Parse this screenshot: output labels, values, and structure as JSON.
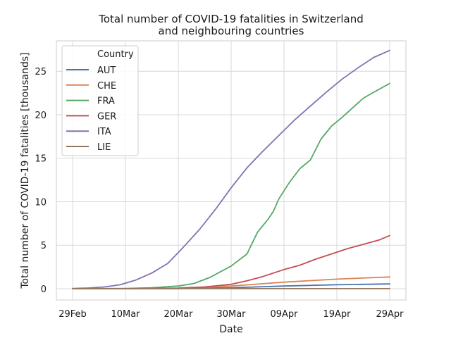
{
  "chart_data": {
    "type": "line",
    "title": [
      "Total number of COVID-19 fatalities in Switzerland",
      "and neighbouring countries"
    ],
    "xlabel": "Date",
    "ylabel": "Total number of COVID-19 fatalities [thousands]",
    "x_range": [
      "2020-02-29",
      "2020-04-29"
    ],
    "ylim": [
      -1.3,
      28.5
    ],
    "x_ticks": [
      {
        "date": "2020-02-29",
        "label": "29Feb"
      },
      {
        "date": "2020-03-10",
        "label": "10Mar"
      },
      {
        "date": "2020-03-20",
        "label": "20Mar"
      },
      {
        "date": "2020-03-30",
        "label": "30Mar"
      },
      {
        "date": "2020-04-09",
        "label": "09Apr"
      },
      {
        "date": "2020-04-19",
        "label": "19Apr"
      },
      {
        "date": "2020-04-29",
        "label": "29Apr"
      }
    ],
    "y_ticks": [
      0,
      5,
      10,
      15,
      20,
      25
    ],
    "grid": true,
    "legend": {
      "title": "Country",
      "placement": "top-left"
    },
    "series": [
      {
        "name": "AUT",
        "color": "#4c72b0",
        "points": [
          [
            "2020-02-29",
            0
          ],
          [
            "2020-03-10",
            0
          ],
          [
            "2020-03-20",
            0.01
          ],
          [
            "2020-03-30",
            0.1
          ],
          [
            "2020-04-09",
            0.3
          ],
          [
            "2020-04-19",
            0.45
          ],
          [
            "2020-04-29",
            0.55
          ]
        ]
      },
      {
        "name": "CHE",
        "color": "#dd8452",
        "points": [
          [
            "2020-02-29",
            0
          ],
          [
            "2020-03-10",
            0
          ],
          [
            "2020-03-20",
            0.05
          ],
          [
            "2020-03-30",
            0.3
          ],
          [
            "2020-04-09",
            0.75
          ],
          [
            "2020-04-19",
            1.1
          ],
          [
            "2020-04-29",
            1.35
          ]
        ]
      },
      {
        "name": "FRA",
        "color": "#55a868",
        "points": [
          [
            "2020-02-29",
            0
          ],
          [
            "2020-03-05",
            0.01
          ],
          [
            "2020-03-10",
            0.03
          ],
          [
            "2020-03-15",
            0.1
          ],
          [
            "2020-03-20",
            0.3
          ],
          [
            "2020-03-23",
            0.6
          ],
          [
            "2020-03-26",
            1.3
          ],
          [
            "2020-03-30",
            2.6
          ],
          [
            "2020-04-02",
            4.0
          ],
          [
            "2020-04-04",
            6.5
          ],
          [
            "2020-04-06",
            8.0
          ],
          [
            "2020-04-07",
            8.9
          ],
          [
            "2020-04-08",
            10.3
          ],
          [
            "2020-04-10",
            12.2
          ],
          [
            "2020-04-12",
            13.8
          ],
          [
            "2020-04-14",
            14.8
          ],
          [
            "2020-04-16",
            17.2
          ],
          [
            "2020-04-18",
            18.7
          ],
          [
            "2020-04-20",
            19.7
          ],
          [
            "2020-04-22",
            20.8
          ],
          [
            "2020-04-24",
            21.9
          ],
          [
            "2020-04-26",
            22.6
          ],
          [
            "2020-04-29",
            23.6
          ]
        ]
      },
      {
        "name": "GER",
        "color": "#c44e52",
        "points": [
          [
            "2020-02-29",
            0
          ],
          [
            "2020-03-10",
            0
          ],
          [
            "2020-03-20",
            0.07
          ],
          [
            "2020-03-25",
            0.2
          ],
          [
            "2020-03-30",
            0.5
          ],
          [
            "2020-04-02",
            0.9
          ],
          [
            "2020-04-05",
            1.4
          ],
          [
            "2020-04-09",
            2.2
          ],
          [
            "2020-04-12",
            2.7
          ],
          [
            "2020-04-15",
            3.4
          ],
          [
            "2020-04-18",
            4.0
          ],
          [
            "2020-04-21",
            4.6
          ],
          [
            "2020-04-24",
            5.1
          ],
          [
            "2020-04-27",
            5.6
          ],
          [
            "2020-04-29",
            6.1
          ]
        ]
      },
      {
        "name": "ITA",
        "color": "#8172b3",
        "points": [
          [
            "2020-02-29",
            0.02
          ],
          [
            "2020-03-03",
            0.08
          ],
          [
            "2020-03-06",
            0.2
          ],
          [
            "2020-03-09",
            0.45
          ],
          [
            "2020-03-12",
            1.0
          ],
          [
            "2020-03-15",
            1.8
          ],
          [
            "2020-03-18",
            2.9
          ],
          [
            "2020-03-21",
            4.8
          ],
          [
            "2020-03-24",
            6.8
          ],
          [
            "2020-03-27",
            9.1
          ],
          [
            "2020-03-30",
            11.6
          ],
          [
            "2020-04-02",
            13.9
          ],
          [
            "2020-04-05",
            15.8
          ],
          [
            "2020-04-08",
            17.6
          ],
          [
            "2020-04-11",
            19.4
          ],
          [
            "2020-04-14",
            21.0
          ],
          [
            "2020-04-17",
            22.6
          ],
          [
            "2020-04-20",
            24.1
          ],
          [
            "2020-04-23",
            25.4
          ],
          [
            "2020-04-26",
            26.6
          ],
          [
            "2020-04-29",
            27.4
          ]
        ]
      },
      {
        "name": "LIE",
        "color": "#937860",
        "points": [
          [
            "2020-02-29",
            0
          ],
          [
            "2020-04-29",
            0.001
          ]
        ]
      }
    ]
  }
}
